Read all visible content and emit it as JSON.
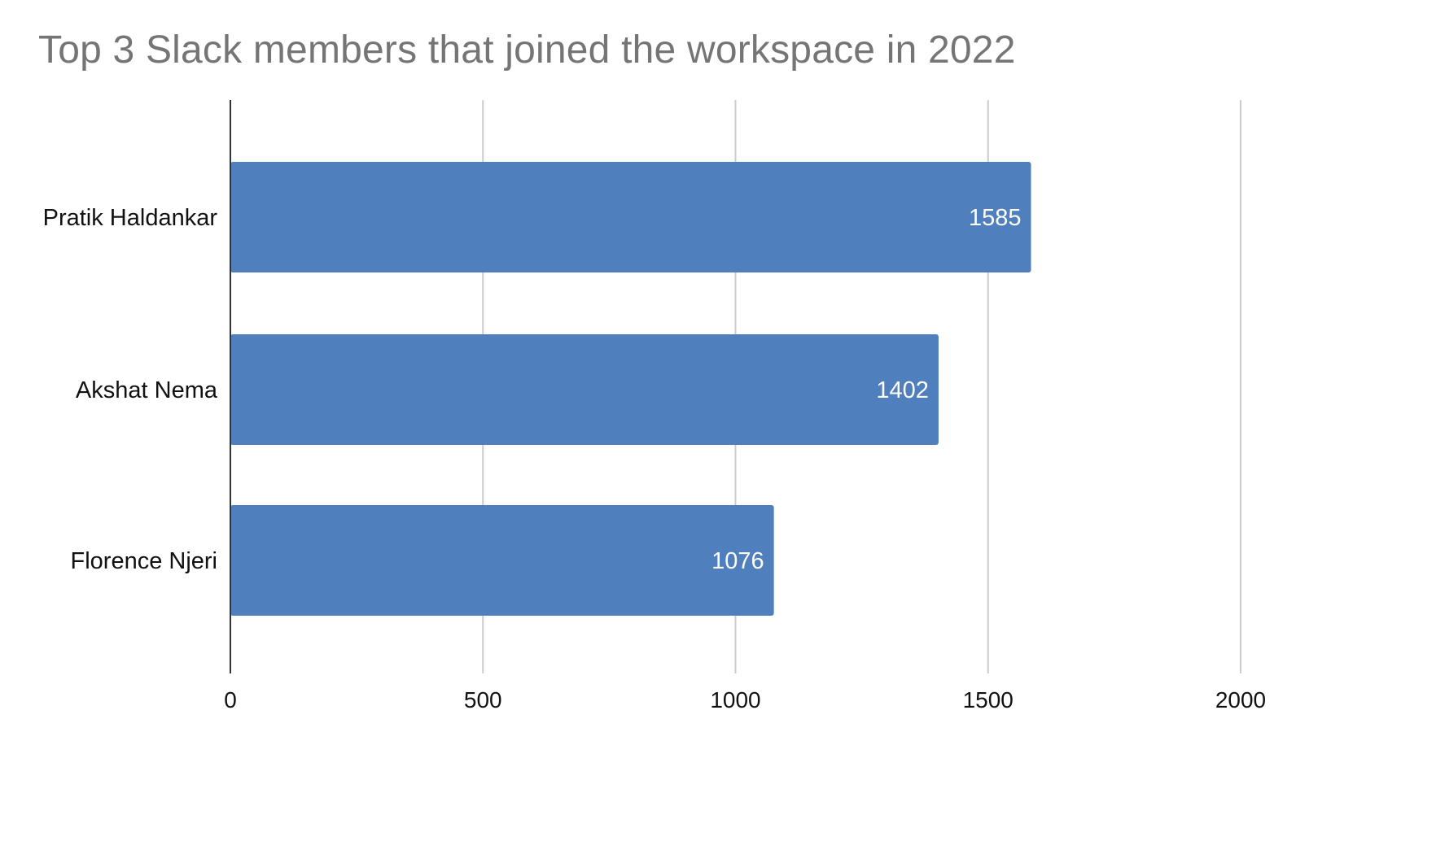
{
  "chart_data": {
    "type": "bar",
    "orientation": "horizontal",
    "title": "Top 3 Slack members that joined the workspace in 2022",
    "categories": [
      "Pratik Haldankar",
      "Akshat Nema",
      "Florence Njeri"
    ],
    "values": [
      1585,
      1402,
      1076
    ],
    "data_labels": [
      "1585",
      "1402",
      "1076"
    ],
    "x_ticks": [
      "0",
      "500",
      "1000",
      "1500",
      "2000"
    ],
    "xlim": [
      0,
      2000
    ],
    "grid": true,
    "legend": "none",
    "colors": {
      "bar": "#4f7fbd",
      "grid": "#cccccc",
      "axis": "#333333",
      "title": "#757575"
    }
  }
}
